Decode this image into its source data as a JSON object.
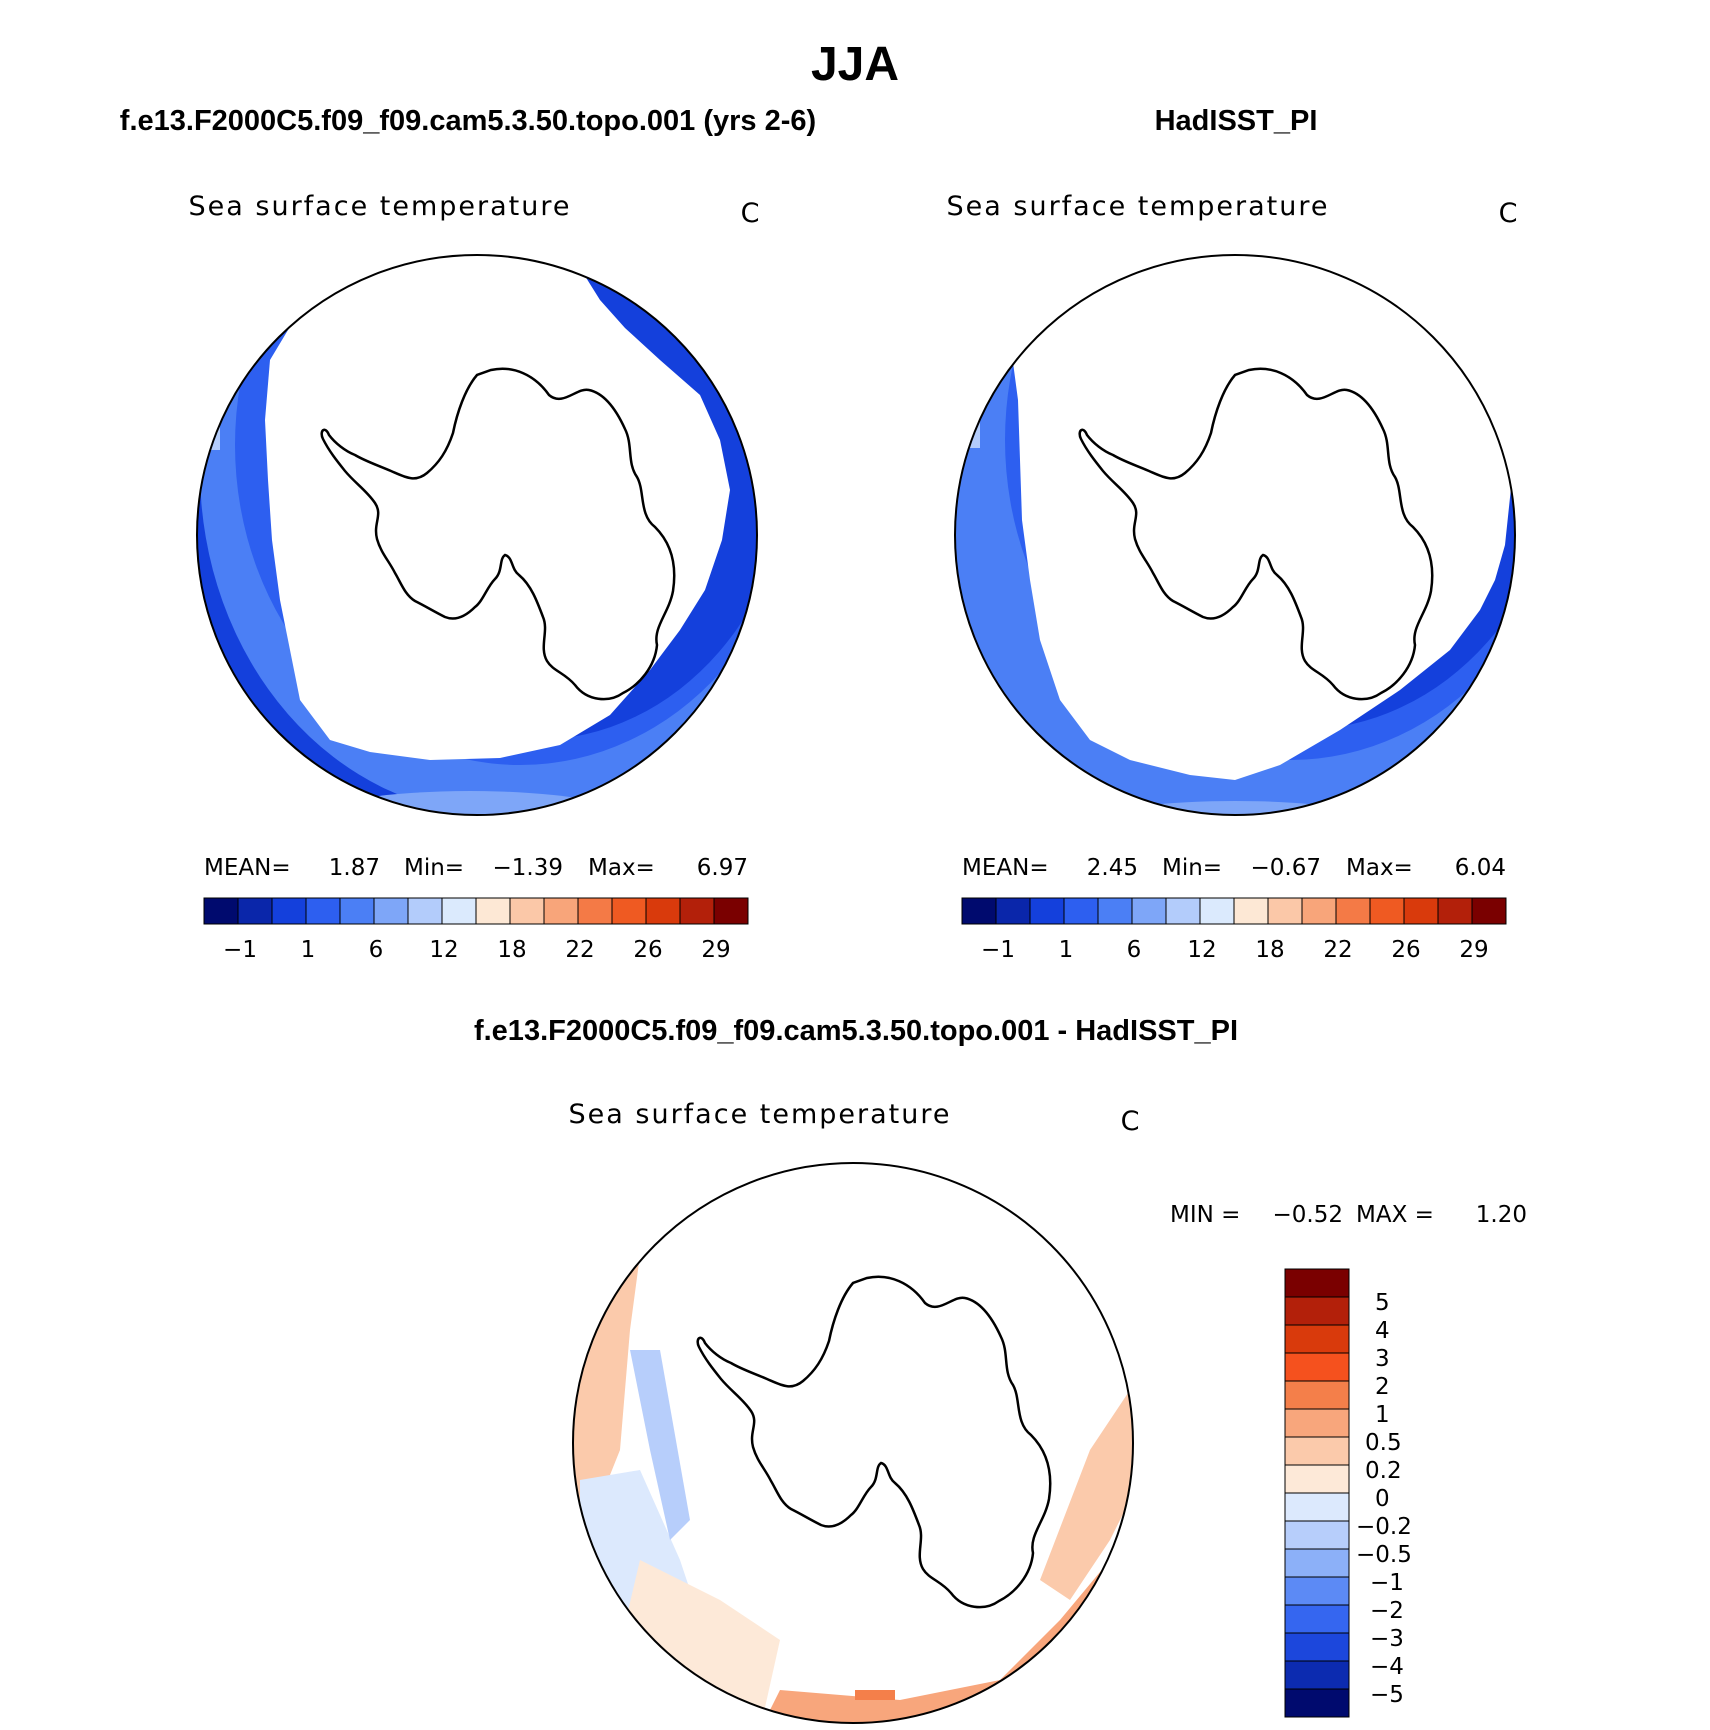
{
  "figure": {
    "season": "JJA",
    "colors": {
      "abs_scale": [
        "#000a6e",
        "#0a26aa",
        "#1440dc",
        "#2d5ff0",
        "#4b7ff5",
        "#7ea6f8",
        "#b3ccfb",
        "#dbeafd",
        "#fde8d5",
        "#fbc8a8",
        "#f8a57a",
        "#f47a46",
        "#ef5a22",
        "#d93a0c",
        "#b3200a",
        "#7a0000"
      ],
      "diff_scale": [
        "#7a0000",
        "#b3200a",
        "#d93a0c",
        "#f5511e",
        "#f47f4a",
        "#f8a67c",
        "#fbcaab",
        "#fde9d8",
        "#dce9fd",
        "#b7cefb",
        "#8cb0f8",
        "#5c8af5",
        "#3566f0",
        "#1c47dc",
        "#0c2bb0",
        "#000a6e"
      ],
      "ocean_dark": "#1440dc",
      "ocean_mid": "#2d5ff0",
      "ocean_light": "#4b7ff5",
      "ocean_pale": "#7ea6f8"
    },
    "panels": [
      {
        "title": "f.e13.F2000C5.f09_f09.cam5.3.50.topo.001 (yrs 2-6)",
        "variable": "Sea surface temperature",
        "units": "C",
        "stats": {
          "mean_label": "MEAN=",
          "mean": "1.87",
          "min_label": "Min=",
          "min": "−1.39",
          "max_label": "Max=",
          "max": "6.97"
        },
        "colorbar_labels": [
          "−1",
          "1",
          "6",
          "12",
          "18",
          "22",
          "26",
          "29"
        ]
      },
      {
        "title": "HadISST_PI",
        "variable": "Sea surface temperature",
        "units": "C",
        "stats": {
          "mean_label": "MEAN=",
          "mean": "2.45",
          "min_label": "Min=",
          "min": "−0.67",
          "max_label": "Max=",
          "max": "6.04"
        },
        "colorbar_labels": [
          "−1",
          "1",
          "6",
          "12",
          "18",
          "22",
          "26",
          "29"
        ]
      }
    ],
    "difference": {
      "title": "f.e13.F2000C5.f09_f09.cam5.3.50.topo.001 - HadISST_PI",
      "variable": "Sea surface temperature",
      "units": "C",
      "stats": {
        "min_label": "MIN =",
        "min": "−0.52",
        "max_label": "MAX =",
        "max": "1.20"
      },
      "colorbar_labels": [
        "5",
        "4",
        "3",
        "2",
        "1",
        "0.5",
        "0.2",
        "0",
        "−0.2",
        "−0.5",
        "−1",
        "−2",
        "−3",
        "−4",
        "−5"
      ]
    }
  }
}
